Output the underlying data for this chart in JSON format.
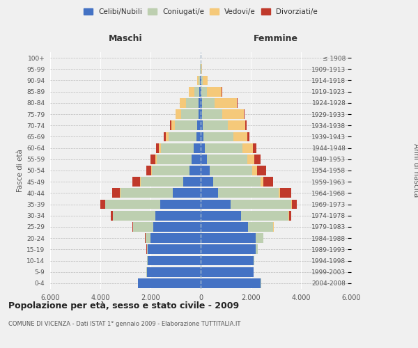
{
  "age_groups": [
    "0-4",
    "5-9",
    "10-14",
    "15-19",
    "20-24",
    "25-29",
    "30-34",
    "35-39",
    "40-44",
    "45-49",
    "50-54",
    "55-59",
    "60-64",
    "65-69",
    "70-74",
    "75-79",
    "80-84",
    "85-89",
    "90-94",
    "95-99",
    "100+"
  ],
  "birth_years": [
    "2004-2008",
    "1999-2003",
    "1994-1998",
    "1989-1993",
    "1984-1988",
    "1979-1983",
    "1974-1978",
    "1969-1973",
    "1964-1968",
    "1959-1963",
    "1954-1958",
    "1949-1953",
    "1944-1948",
    "1939-1943",
    "1934-1938",
    "1929-1933",
    "1924-1928",
    "1919-1923",
    "1914-1918",
    "1909-1913",
    "≤ 1908"
  ],
  "colors": {
    "celibi": "#4472C4",
    "coniugati": "#BDCFB0",
    "vedovi": "#F5C97A",
    "divorziati": "#C0392B"
  },
  "maschi": {
    "celibi": [
      2500,
      2150,
      2100,
      2100,
      2000,
      1900,
      1800,
      1600,
      1100,
      700,
      450,
      350,
      280,
      180,
      130,
      90,
      80,
      60,
      30,
      10,
      5
    ],
    "coniugati": [
      5,
      10,
      30,
      50,
      200,
      800,
      1700,
      2200,
      2100,
      1700,
      1500,
      1400,
      1300,
      1100,
      900,
      700,
      500,
      200,
      40,
      10,
      2
    ],
    "vedovi": [
      0,
      0,
      0,
      2,
      5,
      5,
      5,
      5,
      10,
      15,
      30,
      50,
      80,
      100,
      150,
      200,
      250,
      200,
      60,
      10,
      2
    ],
    "divorziati": [
      0,
      0,
      0,
      2,
      5,
      20,
      70,
      200,
      320,
      300,
      180,
      200,
      130,
      80,
      50,
      20,
      15,
      10,
      5,
      2,
      0
    ]
  },
  "femmine": {
    "celibi": [
      2400,
      2100,
      2100,
      2200,
      2200,
      1900,
      1600,
      1200,
      700,
      500,
      350,
      250,
      180,
      100,
      80,
      60,
      50,
      40,
      20,
      8,
      5
    ],
    "coniugati": [
      5,
      10,
      30,
      80,
      300,
      1000,
      1900,
      2400,
      2400,
      1900,
      1700,
      1600,
      1500,
      1200,
      1000,
      800,
      500,
      200,
      50,
      10,
      2
    ],
    "vedovi": [
      0,
      0,
      0,
      2,
      5,
      10,
      20,
      40,
      80,
      100,
      200,
      300,
      400,
      550,
      700,
      850,
      900,
      600,
      200,
      30,
      5
    ],
    "divorziati": [
      0,
      0,
      0,
      2,
      5,
      20,
      80,
      200,
      420,
      380,
      350,
      250,
      150,
      100,
      60,
      30,
      20,
      15,
      5,
      2,
      0
    ]
  },
  "xlim": 6000,
  "xlabel_left": "Maschi",
  "xlabel_right": "Femmine",
  "ylabel_left": "Fasce di età",
  "ylabel_right": "Anni di nascita",
  "title": "Popolazione per età, sesso e stato civile - 2009",
  "subtitle": "COMUNE DI VICENZA - Dati ISTAT 1° gennaio 2009 - Elaborazione TUTTITALIA.IT",
  "legend_labels": [
    "Celibi/Nubili",
    "Coniugati/e",
    "Vedovi/e",
    "Divorziati/e"
  ],
  "background_color": "#f0f0f0",
  "bar_height": 0.85
}
